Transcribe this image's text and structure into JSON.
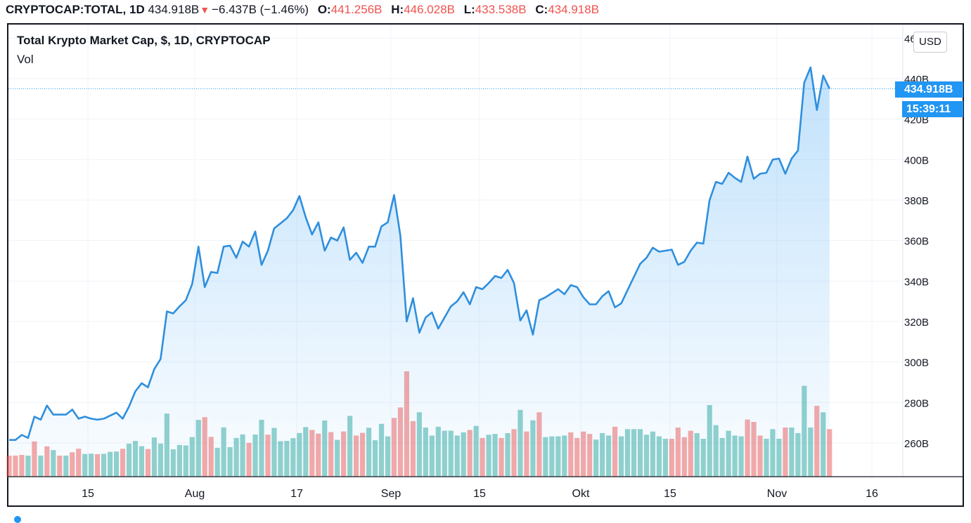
{
  "header": {
    "symbol": "CRYPTOCAP:TOTAL, 1D",
    "last": "434.918B",
    "change": "−6.437B (−1.46%)",
    "o_label": "O:",
    "o_value": "441.256B",
    "h_label": "H:",
    "h_value": "446.028B",
    "l_label": "L:",
    "l_value": "433.538B",
    "c_label": "C:",
    "c_value": "434.918B"
  },
  "legend": {
    "title": "Total Krypto Market Cap, $, 1D, CRYPTOCAP",
    "volume": "Vol"
  },
  "currency_button": "USD",
  "price_tag": "434.918B",
  "countdown_tag": "15:39:11",
  "colors": {
    "line": "#2f8fdd",
    "area": "#2196f3",
    "vol_up": "#26a69a",
    "vol_down": "#ef5350",
    "tag": "#2196f3",
    "grid": "#f0f3fa"
  },
  "icons": [
    "price-down-arrow-icon"
  ],
  "chart_data": {
    "type": "area",
    "ylim": [
      240,
      460
    ],
    "ytick_labels": [
      "460B",
      "440B",
      "420B",
      "400B",
      "380B",
      "360B",
      "340B",
      "320B",
      "300B",
      "280B",
      "260B"
    ],
    "xtick_labels": [
      "15",
      "Aug",
      "17",
      "Sep",
      "15",
      "Okt",
      "15",
      "Nov",
      "16"
    ],
    "series": [
      {
        "values": [
          261.5,
          261.5,
          264,
          262.5,
          273,
          271.5,
          278.5,
          274,
          274,
          274,
          276.5,
          272,
          273,
          272,
          271.5,
          272,
          273.5,
          275,
          272,
          278,
          285.5,
          289.5,
          287.5,
          296.5,
          301.5,
          325,
          324,
          327.5,
          330.5,
          338.5,
          357,
          337,
          344.5,
          344,
          357,
          357.5,
          351.5,
          359.5,
          357,
          364.5,
          348,
          355,
          366,
          368.5,
          371,
          375,
          382,
          371.5,
          363,
          369,
          355,
          361.5,
          360,
          366.5,
          350.5,
          354,
          349,
          357,
          357,
          367,
          369,
          382.5,
          362.5,
          320,
          331.5,
          314.5,
          322,
          324.5,
          316.5,
          322,
          327.5,
          330,
          334.5,
          328.5,
          337,
          336,
          339,
          342.5,
          341.5,
          345.5,
          339,
          320.5,
          325.5,
          313.5,
          330.5,
          332,
          334,
          336,
          333.5,
          338,
          337,
          332,
          328.5,
          328.5,
          332.5,
          335,
          327,
          329,
          335.5,
          342,
          348.5,
          351.5,
          356.5,
          354.5,
          355,
          355.5,
          348,
          349.5,
          355,
          359,
          358.5,
          380,
          389,
          388,
          393.5,
          391,
          389,
          401.5,
          390.5,
          393,
          393.5,
          400,
          400.5,
          393,
          400.5,
          404.5,
          438,
          445.5,
          424.5,
          441.5,
          435
        ]
      }
    ],
    "volume": {
      "up": [
        false,
        false,
        false,
        true,
        false,
        true,
        false,
        true,
        false,
        true,
        false,
        false,
        true,
        true,
        false,
        true,
        true,
        true,
        false,
        true,
        true,
        true,
        false,
        true,
        true,
        true,
        true,
        true,
        true,
        true,
        true,
        false,
        false,
        true,
        true,
        true,
        true,
        true,
        false,
        true,
        true,
        false,
        true,
        true,
        true,
        true,
        true,
        true,
        false,
        false,
        true,
        false,
        true,
        false,
        true,
        false,
        false,
        true,
        true,
        true,
        true,
        false,
        false,
        false,
        false,
        true,
        true,
        true,
        true,
        true,
        true,
        true,
        true,
        false,
        true,
        false,
        true,
        true,
        false,
        true,
        false,
        true,
        false,
        true,
        false,
        true,
        true,
        true,
        true,
        false,
        false,
        false,
        false,
        true,
        true,
        true,
        false,
        true,
        true,
        true,
        true,
        true,
        true,
        true,
        true,
        false,
        false,
        false,
        false,
        true,
        true,
        true,
        true,
        true,
        true,
        true,
        true,
        false,
        false,
        false,
        true,
        true,
        true,
        false,
        true,
        true,
        true,
        true,
        false,
        true,
        false
      ]
    }
  }
}
